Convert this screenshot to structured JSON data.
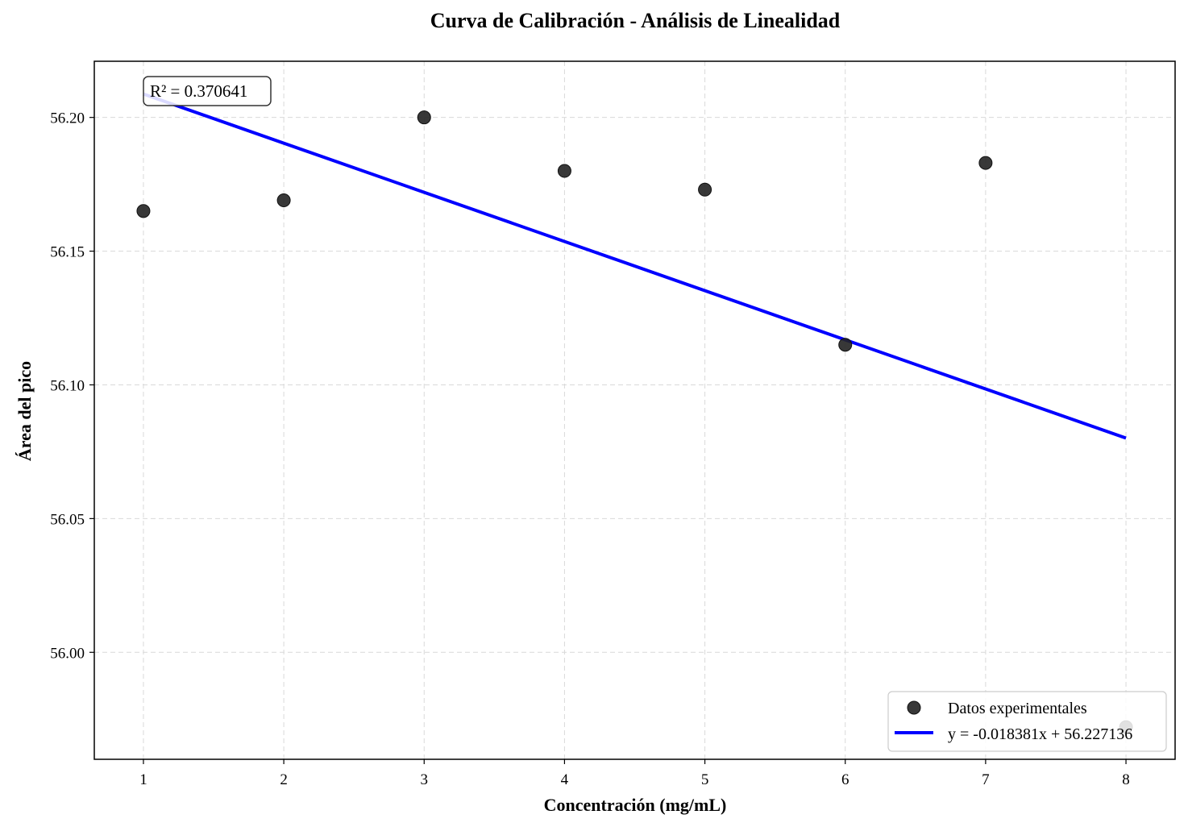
{
  "chart_data": {
    "type": "scatter",
    "title": "Curva de Calibración - Análisis de Linealidad",
    "xlabel": "Concentración (mg/mL)",
    "ylabel": "Área del pico",
    "xlim": [
      0.65,
      8.35
    ],
    "ylim": [
      55.96,
      56.221
    ],
    "xticks": [
      1,
      2,
      3,
      4,
      5,
      6,
      7,
      8
    ],
    "yticks": [
      56.0,
      56.05,
      56.1,
      56.15,
      56.2
    ],
    "ytick_labels": [
      "56.00",
      "56.05",
      "56.10",
      "56.15",
      "56.20"
    ],
    "grid": true,
    "series": [
      {
        "name": "Datos experimentales",
        "kind": "scatter",
        "color": "#222222",
        "x": [
          1,
          2,
          3,
          4,
          5,
          6,
          7,
          8
        ],
        "y": [
          56.165,
          56.169,
          56.2,
          56.18,
          56.173,
          56.115,
          56.183,
          55.972
        ]
      },
      {
        "name": "y = -0.018381x + 56.227136",
        "kind": "line",
        "color": "#0000ff",
        "slope": -0.018381,
        "intercept": 56.227136,
        "x_range": [
          1,
          8
        ]
      }
    ],
    "annotation": "R² = 0.370641",
    "legend_position": "lower-right"
  }
}
